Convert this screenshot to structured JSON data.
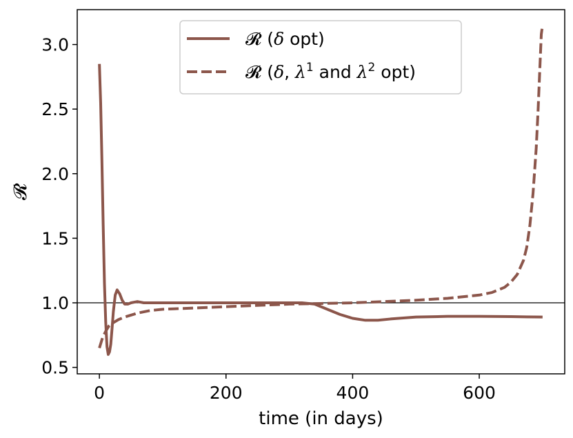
{
  "chart_data": {
    "type": "line",
    "xlabel": "time (in days)",
    "ylabel": "𝓡",
    "xlim": [
      -35,
      735
    ],
    "ylim": [
      0.45,
      3.27
    ],
    "xticks": [
      0,
      200,
      400,
      600
    ],
    "yticks": [
      0.5,
      1.0,
      1.5,
      2.0,
      2.5,
      3.0
    ],
    "xtick_labels": [
      "0",
      "200",
      "400",
      "600"
    ],
    "ytick_labels": [
      "0.5",
      "1.0",
      "1.5",
      "2.0",
      "2.5",
      "3.0"
    ],
    "grid": false,
    "reference_line": {
      "y": 1.0,
      "color": "#000000"
    },
    "legend": {
      "placement": "top-center",
      "entries": [
        {
          "series": 0,
          "prefix": "𝓡 (",
          "parts": [
            [
              "δ",
              "it"
            ],
            [
              " opt)",
              ""
            ]
          ]
        },
        {
          "series": 1,
          "prefix": "𝓡 (",
          "parts": [
            [
              "δ",
              "it"
            ],
            [
              ", ",
              ""
            ],
            [
              "λ",
              "it"
            ],
            [
              "1",
              "sup"
            ],
            [
              " and ",
              ""
            ],
            [
              "λ",
              "it"
            ],
            [
              "2",
              "sup"
            ],
            [
              " opt)",
              ""
            ]
          ]
        }
      ]
    },
    "series": [
      {
        "style": "solid",
        "color": "#8c564b",
        "x": [
          0,
          2,
          4,
          6,
          8,
          10,
          12,
          14,
          16,
          18,
          20,
          22,
          25,
          28,
          32,
          36,
          40,
          45,
          50,
          55,
          60,
          65,
          70,
          80,
          100,
          150,
          200,
          250,
          300,
          320,
          340,
          360,
          380,
          400,
          420,
          440,
          460,
          500,
          550,
          600,
          650,
          700
        ],
        "y": [
          2.85,
          2.55,
          2.1,
          1.6,
          1.15,
          0.85,
          0.66,
          0.6,
          0.62,
          0.68,
          0.8,
          0.93,
          1.06,
          1.1,
          1.07,
          1.02,
          0.99,
          0.99,
          1.0,
          1.005,
          1.01,
          1.005,
          1.0,
          1.0,
          1.0,
          1.0,
          1.0,
          1.0,
          1.0,
          1.0,
          0.99,
          0.95,
          0.91,
          0.88,
          0.865,
          0.865,
          0.875,
          0.89,
          0.895,
          0.895,
          0.893,
          0.89
        ]
      },
      {
        "style": "dashed",
        "color": "#8c564b",
        "x": [
          0,
          5,
          10,
          15,
          20,
          30,
          40,
          60,
          80,
          100,
          150,
          200,
          250,
          300,
          350,
          400,
          450,
          500,
          550,
          600,
          620,
          640,
          650,
          660,
          670,
          675,
          680,
          685,
          690,
          693,
          696,
          698,
          700
        ],
        "y": [
          0.65,
          0.73,
          0.78,
          0.82,
          0.84,
          0.87,
          0.89,
          0.92,
          0.94,
          0.95,
          0.96,
          0.97,
          0.98,
          0.99,
          0.995,
          1.0,
          1.01,
          1.02,
          1.035,
          1.06,
          1.08,
          1.12,
          1.16,
          1.22,
          1.33,
          1.43,
          1.6,
          1.85,
          2.2,
          2.5,
          2.85,
          3.08,
          3.15
        ]
      }
    ]
  }
}
